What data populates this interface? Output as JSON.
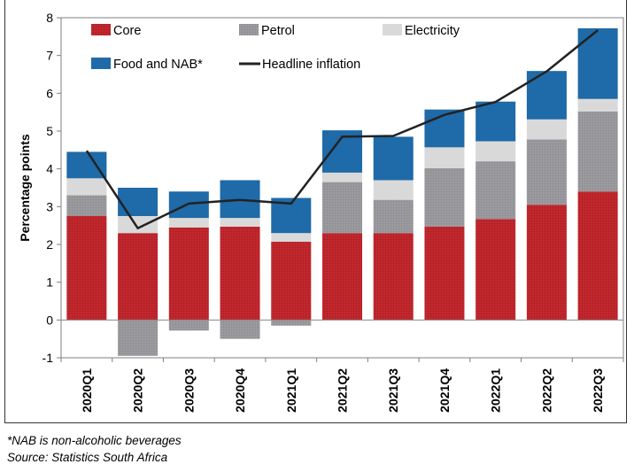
{
  "chart_data": {
    "type": "bar",
    "stacked": true,
    "categories": [
      "2020Q1",
      "2020Q2",
      "2020Q3",
      "2020Q4",
      "2021Q1",
      "2021Q2",
      "2021Q3",
      "2021Q4",
      "2022Q1",
      "2022Q2",
      "2022Q3"
    ],
    "series": [
      {
        "name": "Core",
        "color": "#c0272d",
        "values": [
          2.75,
          2.3,
          2.45,
          2.47,
          2.07,
          2.3,
          2.3,
          2.47,
          2.67,
          3.05,
          3.4
        ]
      },
      {
        "name": "Petrol",
        "color": "#9a9a9e",
        "values": [
          0.55,
          -0.95,
          -0.28,
          -0.5,
          -0.15,
          1.35,
          0.88,
          1.55,
          1.53,
          1.73,
          2.12
        ]
      },
      {
        "name": "Electricity",
        "color": "#d9d9d9",
        "values": [
          0.45,
          0.45,
          0.25,
          0.23,
          0.23,
          0.25,
          0.52,
          0.55,
          0.53,
          0.53,
          0.33
        ]
      },
      {
        "name": "Food and NAB*",
        "color": "#1f6aa8",
        "values": [
          0.7,
          0.75,
          0.7,
          1.0,
          0.93,
          1.12,
          1.15,
          1.0,
          1.05,
          1.28,
          1.87
        ]
      }
    ],
    "line": {
      "name": "Headline inflation",
      "color": "#222222",
      "values": [
        4.48,
        2.43,
        3.08,
        3.18,
        3.08,
        4.85,
        4.87,
        5.43,
        5.77,
        6.58,
        7.67
      ]
    },
    "ylabel": "Percentage points",
    "ylim": [
      -1,
      8
    ],
    "yticks": [
      -1,
      0,
      1,
      2,
      3,
      4,
      5,
      6,
      7,
      8
    ],
    "legend_position": "top",
    "grid": false
  },
  "notes": {
    "nab": "*NAB is non-alcoholic beverages",
    "source": "Source: Statistics South Africa"
  }
}
